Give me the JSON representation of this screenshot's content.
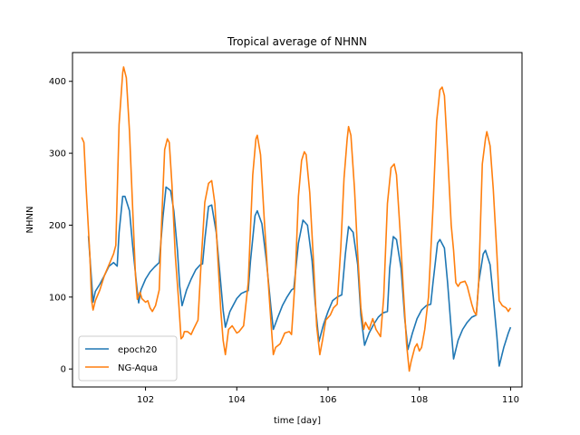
{
  "chart_data": {
    "type": "line",
    "title": "Tropical average of NHNN",
    "xlabel": "time [day]",
    "ylabel": "NHNN",
    "xlim": [
      100.4,
      110.25
    ],
    "ylim": [
      -25,
      440
    ],
    "xticks": [
      102,
      104,
      106,
      108,
      110
    ],
    "yticks": [
      0,
      100,
      200,
      300,
      400
    ],
    "grid": false,
    "legend_position": "lower left",
    "series": [
      {
        "name": "epoch20",
        "color": "#1f77b4",
        "points": [
          [
            100.75,
            185
          ],
          [
            100.85,
            93
          ],
          [
            100.9,
            108
          ],
          [
            101.0,
            118
          ],
          [
            101.1,
            130
          ],
          [
            101.2,
            143
          ],
          [
            101.3,
            148
          ],
          [
            101.38,
            143
          ],
          [
            101.42,
            190
          ],
          [
            101.5,
            240
          ],
          [
            101.55,
            240
          ],
          [
            101.65,
            220
          ],
          [
            101.72,
            170
          ],
          [
            101.8,
            120
          ],
          [
            101.85,
            92
          ],
          [
            101.9,
            110
          ],
          [
            102.0,
            125
          ],
          [
            102.1,
            135
          ],
          [
            102.2,
            142
          ],
          [
            102.3,
            148
          ],
          [
            102.38,
            210
          ],
          [
            102.45,
            253
          ],
          [
            102.55,
            248
          ],
          [
            102.62,
            220
          ],
          [
            102.7,
            165
          ],
          [
            102.75,
            115
          ],
          [
            102.8,
            88
          ],
          [
            102.9,
            110
          ],
          [
            103.0,
            125
          ],
          [
            103.1,
            138
          ],
          [
            103.2,
            145
          ],
          [
            103.25,
            146
          ],
          [
            103.3,
            180
          ],
          [
            103.38,
            226
          ],
          [
            103.45,
            228
          ],
          [
            103.55,
            190
          ],
          [
            103.62,
            140
          ],
          [
            103.7,
            82
          ],
          [
            103.75,
            58
          ],
          [
            103.85,
            80
          ],
          [
            104.0,
            98
          ],
          [
            104.1,
            105
          ],
          [
            104.2,
            108
          ],
          [
            104.25,
            109
          ],
          [
            104.3,
            150
          ],
          [
            104.4,
            213
          ],
          [
            104.45,
            220
          ],
          [
            104.55,
            202
          ],
          [
            104.65,
            150
          ],
          [
            104.75,
            85
          ],
          [
            104.8,
            55
          ],
          [
            104.9,
            72
          ],
          [
            105.0,
            88
          ],
          [
            105.1,
            100
          ],
          [
            105.2,
            110
          ],
          [
            105.25,
            112
          ],
          [
            105.35,
            175
          ],
          [
            105.45,
            207
          ],
          [
            105.55,
            200
          ],
          [
            105.65,
            150
          ],
          [
            105.72,
            90
          ],
          [
            105.8,
            38
          ],
          [
            105.9,
            62
          ],
          [
            106.0,
            80
          ],
          [
            106.1,
            95
          ],
          [
            106.2,
            100
          ],
          [
            106.3,
            103
          ],
          [
            106.38,
            160
          ],
          [
            106.45,
            198
          ],
          [
            106.55,
            190
          ],
          [
            106.65,
            145
          ],
          [
            106.72,
            75
          ],
          [
            106.8,
            33
          ],
          [
            106.9,
            50
          ],
          [
            107.0,
            62
          ],
          [
            107.1,
            72
          ],
          [
            107.2,
            78
          ],
          [
            107.3,
            80
          ],
          [
            107.35,
            140
          ],
          [
            107.43,
            184
          ],
          [
            107.5,
            180
          ],
          [
            107.6,
            140
          ],
          [
            107.68,
            70
          ],
          [
            107.75,
            27
          ],
          [
            107.85,
            50
          ],
          [
            107.95,
            70
          ],
          [
            108.05,
            82
          ],
          [
            108.15,
            88
          ],
          [
            108.25,
            90
          ],
          [
            108.3,
            120
          ],
          [
            108.4,
            175
          ],
          [
            108.45,
            180
          ],
          [
            108.55,
            168
          ],
          [
            108.62,
            120
          ],
          [
            108.7,
            55
          ],
          [
            108.75,
            14
          ],
          [
            108.85,
            40
          ],
          [
            108.95,
            55
          ],
          [
            109.05,
            65
          ],
          [
            109.15,
            72
          ],
          [
            109.25,
            75
          ],
          [
            109.3,
            120
          ],
          [
            109.4,
            160
          ],
          [
            109.45,
            165
          ],
          [
            109.55,
            145
          ],
          [
            109.62,
            100
          ],
          [
            109.7,
            45
          ],
          [
            109.75,
            4
          ],
          [
            109.85,
            30
          ],
          [
            109.95,
            50
          ],
          [
            110.0,
            58
          ]
        ]
      },
      {
        "name": "NG-Aqua",
        "color": "#ff7f0e",
        "points": [
          [
            100.6,
            322
          ],
          [
            100.65,
            315
          ],
          [
            100.7,
            250
          ],
          [
            100.78,
            160
          ],
          [
            100.82,
            95
          ],
          [
            100.85,
            82
          ],
          [
            100.9,
            95
          ],
          [
            101.0,
            110
          ],
          [
            101.1,
            130
          ],
          [
            101.2,
            145
          ],
          [
            101.3,
            160
          ],
          [
            101.35,
            172
          ],
          [
            101.42,
            340
          ],
          [
            101.5,
            412
          ],
          [
            101.52,
            420
          ],
          [
            101.58,
            405
          ],
          [
            101.65,
            330
          ],
          [
            101.72,
            220
          ],
          [
            101.78,
            130
          ],
          [
            101.82,
            97
          ],
          [
            101.88,
            107
          ],
          [
            101.92,
            98
          ],
          [
            102.0,
            93
          ],
          [
            102.05,
            95
          ],
          [
            102.1,
            85
          ],
          [
            102.15,
            80
          ],
          [
            102.22,
            88
          ],
          [
            102.3,
            110
          ],
          [
            102.35,
            200
          ],
          [
            102.42,
            305
          ],
          [
            102.48,
            320
          ],
          [
            102.52,
            315
          ],
          [
            102.58,
            255
          ],
          [
            102.65,
            160
          ],
          [
            102.72,
            100
          ],
          [
            102.78,
            42
          ],
          [
            102.82,
            45
          ],
          [
            102.85,
            52
          ],
          [
            102.92,
            52
          ],
          [
            103.0,
            48
          ],
          [
            103.05,
            55
          ],
          [
            103.15,
            68
          ],
          [
            103.22,
            150
          ],
          [
            103.3,
            232
          ],
          [
            103.38,
            258
          ],
          [
            103.45,
            262
          ],
          [
            103.52,
            230
          ],
          [
            103.58,
            160
          ],
          [
            103.65,
            80
          ],
          [
            103.7,
            40
          ],
          [
            103.75,
            20
          ],
          [
            103.82,
            55
          ],
          [
            103.9,
            60
          ],
          [
            104.0,
            50
          ],
          [
            104.05,
            52
          ],
          [
            104.15,
            60
          ],
          [
            104.25,
            120
          ],
          [
            104.35,
            270
          ],
          [
            104.42,
            320
          ],
          [
            104.45,
            325
          ],
          [
            104.52,
            298
          ],
          [
            104.6,
            210
          ],
          [
            104.68,
            130
          ],
          [
            104.75,
            65
          ],
          [
            104.8,
            20
          ],
          [
            104.85,
            30
          ],
          [
            104.95,
            35
          ],
          [
            105.05,
            50
          ],
          [
            105.15,
            52
          ],
          [
            105.2,
            48
          ],
          [
            105.28,
            125
          ],
          [
            105.35,
            240
          ],
          [
            105.42,
            290
          ],
          [
            105.48,
            302
          ],
          [
            105.52,
            298
          ],
          [
            105.6,
            245
          ],
          [
            105.68,
            150
          ],
          [
            105.75,
            60
          ],
          [
            105.82,
            20
          ],
          [
            105.88,
            40
          ],
          [
            105.95,
            68
          ],
          [
            106.05,
            75
          ],
          [
            106.12,
            85
          ],
          [
            106.2,
            90
          ],
          [
            106.28,
            170
          ],
          [
            106.35,
            265
          ],
          [
            106.42,
            320
          ],
          [
            106.45,
            337
          ],
          [
            106.5,
            325
          ],
          [
            106.58,
            250
          ],
          [
            106.65,
            160
          ],
          [
            106.72,
            85
          ],
          [
            106.78,
            55
          ],
          [
            106.82,
            65
          ],
          [
            106.9,
            55
          ],
          [
            106.98,
            70
          ],
          [
            107.05,
            55
          ],
          [
            107.15,
            45
          ],
          [
            107.22,
            100
          ],
          [
            107.3,
            230
          ],
          [
            107.38,
            280
          ],
          [
            107.45,
            285
          ],
          [
            107.5,
            270
          ],
          [
            107.58,
            190
          ],
          [
            107.65,
            110
          ],
          [
            107.72,
            35
          ],
          [
            107.78,
            -3
          ],
          [
            107.82,
            10
          ],
          [
            107.9,
            30
          ],
          [
            107.95,
            35
          ],
          [
            108.0,
            25
          ],
          [
            108.05,
            30
          ],
          [
            108.12,
            55
          ],
          [
            108.2,
            100
          ],
          [
            108.3,
            225
          ],
          [
            108.38,
            345
          ],
          [
            108.45,
            388
          ],
          [
            108.5,
            392
          ],
          [
            108.55,
            380
          ],
          [
            108.62,
            300
          ],
          [
            108.7,
            200
          ],
          [
            108.75,
            165
          ],
          [
            108.8,
            120
          ],
          [
            108.85,
            115
          ],
          [
            108.9,
            120
          ],
          [
            109.0,
            122
          ],
          [
            109.05,
            115
          ],
          [
            109.15,
            90
          ],
          [
            109.2,
            80
          ],
          [
            109.25,
            75
          ],
          [
            109.3,
            120
          ],
          [
            109.38,
            285
          ],
          [
            109.45,
            320
          ],
          [
            109.48,
            330
          ],
          [
            109.55,
            310
          ],
          [
            109.62,
            250
          ],
          [
            109.7,
            160
          ],
          [
            109.75,
            95
          ],
          [
            109.82,
            88
          ],
          [
            109.9,
            85
          ],
          [
            109.95,
            80
          ],
          [
            110.0,
            85
          ]
        ]
      }
    ]
  }
}
